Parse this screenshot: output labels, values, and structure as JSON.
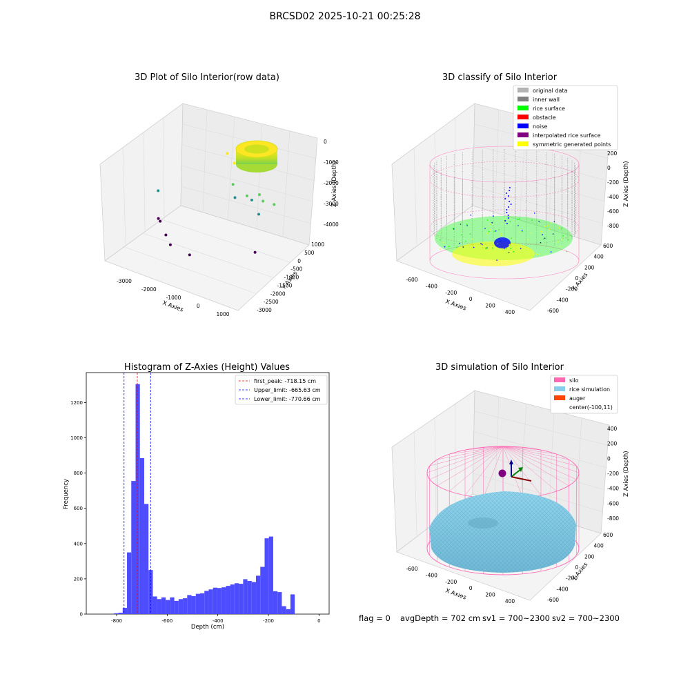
{
  "figure": {
    "title": "BRCSD02 2025-10-21 00:25:28",
    "status": {
      "flag": "flag = 0",
      "avgDepth": "avgDepth = 702 cm",
      "sv1": "sv1 = 700~2300",
      "sv2": "sv2 = 700~2300"
    }
  },
  "chart_data": [
    {
      "type": "scatter",
      "title": "3D Plot of Silo Interior(row data)",
      "xlabel": "X Axies",
      "ylabel": "Y Axies",
      "zlabel": "Z Axies (Depth)",
      "x_ticks": [
        "-3000",
        "-2000",
        "-1000",
        "0",
        "1000"
      ],
      "y_ticks": [
        "1000",
        "500",
        "0",
        "-500",
        "-1000",
        "-1500",
        "-2000",
        "-2500",
        "-3000"
      ],
      "z_ticks": [
        "0",
        "-1000",
        "-2000",
        "-3000",
        "-4000"
      ],
      "grid": true,
      "colormap": "viridis",
      "points": [
        {
          "x": -3200,
          "y": -600,
          "z": -2600
        },
        {
          "x": -3000,
          "y": -900,
          "z": -3600
        },
        {
          "x": -2900,
          "y": -950,
          "z": -3650
        },
        {
          "x": -2400,
          "y": -1400,
          "z": -3800
        },
        {
          "x": -2100,
          "y": -1600,
          "z": -4000
        },
        {
          "x": -1300,
          "y": -1700,
          "z": -4050
        },
        {
          "x": -1500,
          "y": 900,
          "z": -1000
        },
        {
          "x": -1100,
          "y": 700,
          "z": -1150
        },
        {
          "x": -900,
          "y": 300,
          "z": -1800
        },
        {
          "x": -700,
          "y": 100,
          "z": -2200
        },
        {
          "x": -300,
          "y": 200,
          "z": -2000
        },
        {
          "x": -150,
          "y": 250,
          "z": -2150
        },
        {
          "x": 50,
          "y": 400,
          "z": -1900
        },
        {
          "x": 250,
          "y": 300,
          "z": -2050
        },
        {
          "x": 400,
          "y": -200,
          "z": -2300
        },
        {
          "x": 700,
          "y": -900,
          "z": -3500
        },
        {
          "x": 800,
          "y": 100,
          "z": -1850
        }
      ],
      "surface": {
        "x_center": -100,
        "y_center": 100,
        "z_top": -200,
        "z_bottom": -900,
        "radius": 600
      }
    },
    {
      "type": "scatter",
      "title": "3D classify of Silo Interior",
      "xlabel": "X Axies",
      "ylabel": "Y Axies",
      "zlabel": "Z Axies (Depth)",
      "x_ticks": [
        "-600",
        "-400",
        "-200",
        "0",
        "200",
        "400"
      ],
      "y_ticks": [
        "600",
        "400",
        "200",
        "0",
        "-200",
        "-400",
        "-600"
      ],
      "z_ticks": [
        "200",
        "0",
        "-200",
        "-400",
        "-600",
        "-800"
      ],
      "grid": true,
      "legend": {
        "placement": "top-right",
        "items": [
          {
            "label": "original data",
            "color": "#b3b3b3"
          },
          {
            "label": "inner wall",
            "color": "#808080"
          },
          {
            "label": "rice surface",
            "color": "#00ff00"
          },
          {
            "label": "obstacle",
            "color": "#ff0000"
          },
          {
            "label": "noise",
            "color": "#0000ff"
          },
          {
            "label": "interpolated rice surface",
            "color": "#800080"
          },
          {
            "label": "symmetric generated points",
            "color": "#ffff00"
          }
        ]
      },
      "silo_outline_color": "#ff69b4"
    },
    {
      "type": "bar",
      "title": "Histogram of Z-Axies (Height) Values",
      "xlabel": "Depth (cm)",
      "ylabel": "Frequency",
      "xlim": [
        -920,
        40
      ],
      "ylim": [
        0,
        1370
      ],
      "x_ticks": [
        -800,
        -600,
        -400,
        -200,
        0
      ],
      "y_ticks": [
        0,
        200,
        400,
        600,
        800,
        1000,
        1200
      ],
      "bin_width": 17,
      "bar_color": "#4d4dff",
      "bins": [
        {
          "x": -810,
          "v": 5
        },
        {
          "x": -793,
          "v": 8
        },
        {
          "x": -776,
          "v": 35
        },
        {
          "x": -759,
          "v": 350
        },
        {
          "x": -742,
          "v": 755
        },
        {
          "x": -725,
          "v": 1305
        },
        {
          "x": -708,
          "v": 885
        },
        {
          "x": -691,
          "v": 625
        },
        {
          "x": -674,
          "v": 250
        },
        {
          "x": -657,
          "v": 100
        },
        {
          "x": -640,
          "v": 85
        },
        {
          "x": -623,
          "v": 95
        },
        {
          "x": -606,
          "v": 80
        },
        {
          "x": -589,
          "v": 95
        },
        {
          "x": -572,
          "v": 75
        },
        {
          "x": -555,
          "v": 85
        },
        {
          "x": -538,
          "v": 90
        },
        {
          "x": -521,
          "v": 108
        },
        {
          "x": -504,
          "v": 102
        },
        {
          "x": -487,
          "v": 115
        },
        {
          "x": -470,
          "v": 118
        },
        {
          "x": -453,
          "v": 132
        },
        {
          "x": -436,
          "v": 140
        },
        {
          "x": -419,
          "v": 150
        },
        {
          "x": -402,
          "v": 148
        },
        {
          "x": -385,
          "v": 152
        },
        {
          "x": -368,
          "v": 160
        },
        {
          "x": -351,
          "v": 168
        },
        {
          "x": -334,
          "v": 175
        },
        {
          "x": -317,
          "v": 172
        },
        {
          "x": -300,
          "v": 198
        },
        {
          "x": -283,
          "v": 188
        },
        {
          "x": -266,
          "v": 182
        },
        {
          "x": -249,
          "v": 218
        },
        {
          "x": -232,
          "v": 268
        },
        {
          "x": -215,
          "v": 430
        },
        {
          "x": -198,
          "v": 440
        },
        {
          "x": -181,
          "v": 130
        },
        {
          "x": -164,
          "v": 125
        },
        {
          "x": -147,
          "v": 45
        },
        {
          "x": -130,
          "v": 28
        },
        {
          "x": -113,
          "v": 112
        }
      ],
      "lines": [
        {
          "label": "first_peak: -718.15 cm",
          "x": -718.15,
          "color": "#ff0000"
        },
        {
          "label": "Upper_limit: -665.63 cm",
          "x": -665.63,
          "color": "#0000ff"
        },
        {
          "label": "Lower_limit: -770.66 cm",
          "x": -770.66,
          "color": "#0000ff"
        }
      ],
      "legend": {
        "placement": "top-right"
      }
    },
    {
      "type": "scatter",
      "title": "3D simulation of Silo Interior",
      "xlabel": "X Axies",
      "ylabel": "Y Axies",
      "zlabel": "Z Axies (Depth)",
      "x_ticks": [
        "-600",
        "-400",
        "-200",
        "0",
        "200",
        "400"
      ],
      "y_ticks": [
        "600",
        "400",
        "200",
        "0",
        "-200",
        "-400",
        "-600"
      ],
      "z_ticks": [
        "400",
        "200",
        "0",
        "-200",
        "-400",
        "-600",
        "-800"
      ],
      "grid": true,
      "legend": {
        "placement": "top-right",
        "items": [
          {
            "label": "silo",
            "color": "#ff69b4"
          },
          {
            "label": "rice simulation",
            "color": "#87ceeb"
          },
          {
            "label": "auger",
            "color": "#ff4500"
          },
          {
            "label": "center(-100,11)",
            "color": ""
          }
        ]
      }
    }
  ]
}
